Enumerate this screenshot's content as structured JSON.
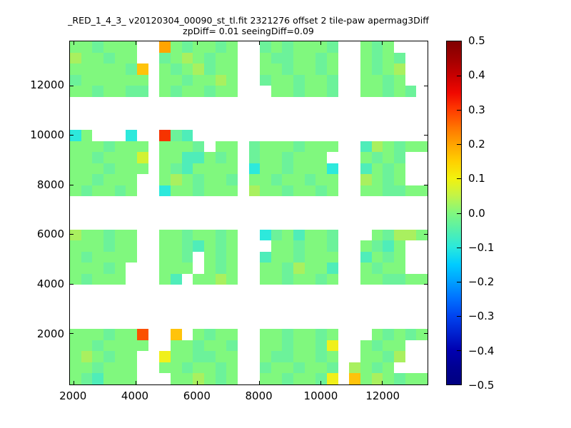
{
  "chart_data": {
    "type": "heatmap",
    "title": "_RED_1_4_3_ v20120304_00090_st_tl.fit 2321276 offset 2 tile-paw apermag3Diff",
    "subtitle": "zpDiff= 0.01 seeingDiff=0.09",
    "xlabel": "",
    "ylabel": "",
    "grid_on": false,
    "x_ticks": [
      2000,
      4000,
      6000,
      8000,
      10000,
      12000
    ],
    "y_ticks": [
      2000,
      4000,
      6000,
      8000,
      10000,
      12000
    ],
    "x_tick_labels": [
      "2000",
      "4000",
      "6000",
      "8000",
      "10000",
      "12000"
    ],
    "y_tick_labels": [
      "2000",
      "4000",
      "6000",
      "8000",
      "10000",
      "12000"
    ],
    "x_range": [
      1880,
      13470
    ],
    "y_range": [
      -60,
      13770
    ],
    "colorbar": {
      "min": -0.5,
      "max": 0.5,
      "colormap": "jet",
      "tick_labels": [
        "0.5",
        "0.4",
        "0.3",
        "0.2",
        "0.1",
        "0.0",
        "−0.1",
        "−0.2",
        "−0.3",
        "−0.4",
        "−0.5"
      ]
    },
    "cells": {
      "n_cols": 32,
      "n_rows": 31,
      "no_data_char": ".",
      "palette": {
        "a": {
          "hex": "#80F87E",
          "value": 0.02
        },
        "b": {
          "hex": "#6CF29A",
          "value": -0.03
        },
        "c": {
          "hex": "#4FEDB9",
          "value": -0.08
        },
        "d": {
          "hex": "#2DE9DC",
          "value": -0.13
        },
        "e": {
          "hex": "#A9F05F",
          "value": 0.07
        },
        "f": {
          "hex": "#D2F233",
          "value": 0.1
        },
        "g": {
          "hex": "#F0F01B",
          "value": 0.14
        },
        "h": {
          "hex": "#FFC30B",
          "value": 0.19
        },
        "i": {
          "hex": "#FFA400",
          "value": 0.22
        },
        "j": {
          "hex": "#FB5000",
          "value": 0.32
        },
        "k": {
          "hex": "#F63300",
          "value": 0.38
        }
      },
      "rows": [
        "aabaaa..iabaaba..babaaab..aba...",
        "eaabaa..baeabaa..abbaaba..abab..",
        "aaaaabh.abaebaa..aabaaba..abae..",
        "baaaaaa.aabaaea..baabaab..aaba..",
        "aabaabb.abaabaa...aabaab..aabab.",
        "................................",
        "................................",
        "................................",
        "da...d..kbc.....................",
        "aaabaaa.aaab.aa.baaabaaa..ceabaa",
        "aabaaaf.aaccaba.baabaaa...abab..",
        "aaabaaa.abcaaaa.daabaaad..caba..",
        "aabaaa..aeabaab.aabaabaa..eaba..",
        "abaaba..daabaaa.eaabaaba..aabbaa",
        "................................",
        "................................",
        "................................",
        "eaabaa..aabaaba..dbacaab...abeea",
        "aaabaa..aabcaba...aabaab..abca..",
        "abaaaa..aab.aba..caabaaa..caba..",
        "aaaba...aaa.aba..aabeaac..abaa..",
        "abaaa...ac.aaea..aabaaba..aabbaa",
        "................................",
        "................................",
        "................................",
        "................................",
        "aaabaaj..h.abaa..aabaaba...ababa",
        "aabaaaa..aabaab..aabaabg..abaa..",
        "aeabaa..gaabbaa..abbaaba..aabe..",
        "aabaaa..aabaaba..baabaab.eaba...",
        "abcaaa...aaeaba..aabaabg.haeabaa"
      ]
    }
  }
}
